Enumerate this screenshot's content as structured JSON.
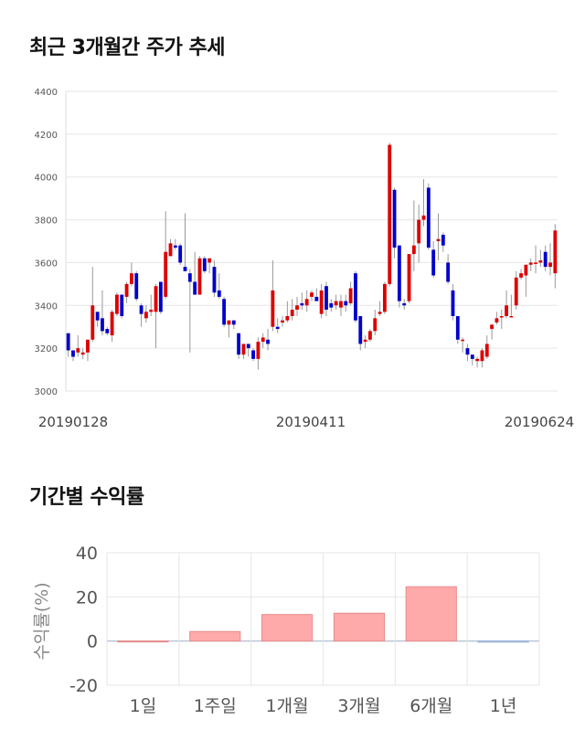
{
  "sections": {
    "price_trend_title": "최근 3개월간 주가 추세",
    "returns_title": "기간별 수익률"
  },
  "colors": {
    "up": "#dd0000",
    "down": "#0000cc",
    "wick": "#999999",
    "bar": "#ffaaaa",
    "bar_stroke": "#e88a8a",
    "grid": "#e6e6e6"
  },
  "chart_data": [
    {
      "type": "candlestick",
      "title": "",
      "ylim": [
        3000,
        4400
      ],
      "y_ticks": [
        3000,
        3200,
        3400,
        3600,
        3800,
        4000,
        4200,
        4400
      ],
      "x_tick_labels": [
        "20190128",
        "20190411",
        "20190624"
      ],
      "grid": true,
      "series_ohlc": [
        [
          3270,
          3270,
          3160,
          3190
        ],
        [
          3190,
          3190,
          3140,
          3160
        ],
        [
          3180,
          3260,
          3160,
          3200
        ],
        [
          3170,
          3200,
          3150,
          3180
        ],
        [
          3180,
          3230,
          3140,
          3240
        ],
        [
          3240,
          3580,
          3230,
          3400
        ],
        [
          3370,
          3360,
          3300,
          3330
        ],
        [
          3340,
          3470,
          3260,
          3280
        ],
        [
          3290,
          3300,
          3260,
          3270
        ],
        [
          3260,
          3380,
          3230,
          3370
        ],
        [
          3360,
          3460,
          3350,
          3450
        ],
        [
          3450,
          3450,
          3340,
          3350
        ],
        [
          3440,
          3510,
          3410,
          3500
        ],
        [
          3500,
          3600,
          3490,
          3550
        ],
        [
          3550,
          3560,
          3420,
          3430
        ],
        [
          3400,
          3410,
          3300,
          3360
        ],
        [
          3340,
          3400,
          3320,
          3370
        ],
        [
          3370,
          3450,
          3350,
          3380
        ],
        [
          3370,
          3500,
          3200,
          3490
        ],
        [
          3510,
          3510,
          3360,
          3370
        ],
        [
          3440,
          3840,
          3430,
          3650
        ],
        [
          3630,
          3710,
          3640,
          3690
        ],
        [
          3680,
          3710,
          3660,
          3670
        ],
        [
          3680,
          3690,
          3590,
          3600
        ],
        [
          3580,
          3830,
          3560,
          3560
        ],
        [
          3550,
          3570,
          3180,
          3510
        ],
        [
          3510,
          3650,
          3470,
          3450
        ],
        [
          3450,
          3630,
          3600,
          3620
        ],
        [
          3620,
          3630,
          3550,
          3560
        ],
        [
          3600,
          3600,
          3550,
          3620
        ],
        [
          3580,
          3610,
          3440,
          3460
        ],
        [
          3470,
          3550,
          3430,
          3440
        ],
        [
          3430,
          3440,
          3300,
          3310
        ],
        [
          3310,
          3330,
          3250,
          3330
        ],
        [
          3330,
          3330,
          3290,
          3310
        ],
        [
          3270,
          3270,
          3150,
          3170
        ],
        [
          3170,
          3210,
          3150,
          3220
        ],
        [
          3220,
          3200,
          3160,
          3200
        ],
        [
          3190,
          3200,
          3140,
          3150
        ],
        [
          3150,
          3250,
          3100,
          3230
        ],
        [
          3230,
          3270,
          3200,
          3250
        ],
        [
          3240,
          3290,
          3190,
          3220
        ],
        [
          3300,
          3610,
          3280,
          3470
        ],
        [
          3300,
          3340,
          3270,
          3290
        ],
        [
          3320,
          3350,
          3300,
          3330
        ],
        [
          3330,
          3420,
          3320,
          3350
        ],
        [
          3350,
          3430,
          3330,
          3380
        ],
        [
          3380,
          3440,
          3350,
          3400
        ],
        [
          3410,
          3460,
          3380,
          3400
        ],
        [
          3400,
          3470,
          3370,
          3430
        ],
        [
          3440,
          3470,
          3420,
          3460
        ],
        [
          3440,
          3480,
          3430,
          3420
        ],
        [
          3360,
          3500,
          3340,
          3470
        ],
        [
          3490,
          3510,
          3350,
          3380
        ],
        [
          3410,
          3430,
          3370,
          3390
        ],
        [
          3400,
          3450,
          3380,
          3420
        ],
        [
          3390,
          3450,
          3350,
          3420
        ],
        [
          3420,
          3450,
          3370,
          3400
        ],
        [
          3410,
          3510,
          3400,
          3480
        ],
        [
          3550,
          3560,
          3320,
          3330
        ],
        [
          3350,
          3350,
          3190,
          3220
        ],
        [
          3230,
          3260,
          3200,
          3240
        ],
        [
          3240,
          3290,
          3230,
          3280
        ],
        [
          3280,
          3380,
          3260,
          3340
        ],
        [
          3360,
          3420,
          3350,
          3370
        ],
        [
          3370,
          3510,
          3360,
          3500
        ],
        [
          3500,
          4160,
          3490,
          4150
        ],
        [
          3940,
          3950,
          3620,
          3670
        ],
        [
          3680,
          3680,
          3390,
          3420
        ],
        [
          3410,
          3430,
          3380,
          3400
        ],
        [
          3420,
          3640,
          3410,
          3640
        ],
        [
          3640,
          3890,
          3560,
          3680
        ],
        [
          3690,
          3870,
          3600,
          3800
        ],
        [
          3800,
          3990,
          3770,
          3820
        ],
        [
          3950,
          3970,
          3660,
          3670
        ],
        [
          3660,
          3700,
          3530,
          3540
        ],
        [
          3700,
          3830,
          3610,
          3710
        ],
        [
          3730,
          3740,
          3650,
          3680
        ],
        [
          3600,
          3640,
          3500,
          3510
        ],
        [
          3470,
          3500,
          3330,
          3350
        ],
        [
          3350,
          3350,
          3220,
          3240
        ],
        [
          3240,
          3250,
          3180,
          3240
        ],
        [
          3200,
          3220,
          3140,
          3170
        ],
        [
          3170,
          3170,
          3120,
          3150
        ],
        [
          3140,
          3160,
          3110,
          3150
        ],
        [
          3140,
          3200,
          3110,
          3190
        ],
        [
          3160,
          3260,
          3150,
          3220
        ],
        [
          3290,
          3310,
          3240,
          3310
        ],
        [
          3320,
          3370,
          3310,
          3340
        ],
        [
          3350,
          3380,
          3290,
          3350
        ],
        [
          3350,
          3470,
          3340,
          3400
        ],
        [
          3350,
          3450,
          3350,
          3350
        ],
        [
          3400,
          3560,
          3380,
          3530
        ],
        [
          3530,
          3570,
          3520,
          3550
        ],
        [
          3540,
          3580,
          3440,
          3590
        ],
        [
          3590,
          3620,
          3560,
          3600
        ],
        [
          3600,
          3680,
          3550,
          3600
        ],
        [
          3600,
          3660,
          3580,
          3610
        ],
        [
          3650,
          3680,
          3560,
          3580
        ],
        [
          3580,
          3690,
          3540,
          3600
        ],
        [
          3550,
          3780,
          3480,
          3750
        ]
      ]
    },
    {
      "type": "bar",
      "title": "",
      "ylabel": "수익률(%)",
      "ylim": [
        -20,
        40
      ],
      "y_ticks": [
        -20,
        0,
        20,
        40
      ],
      "categories": [
        "1일",
        "1주일",
        "1개월",
        "3개월",
        "6개월",
        "1년"
      ],
      "values": [
        0.0,
        4.3,
        12.0,
        12.6,
        24.6,
        -0.5
      ],
      "grid": true
    }
  ]
}
